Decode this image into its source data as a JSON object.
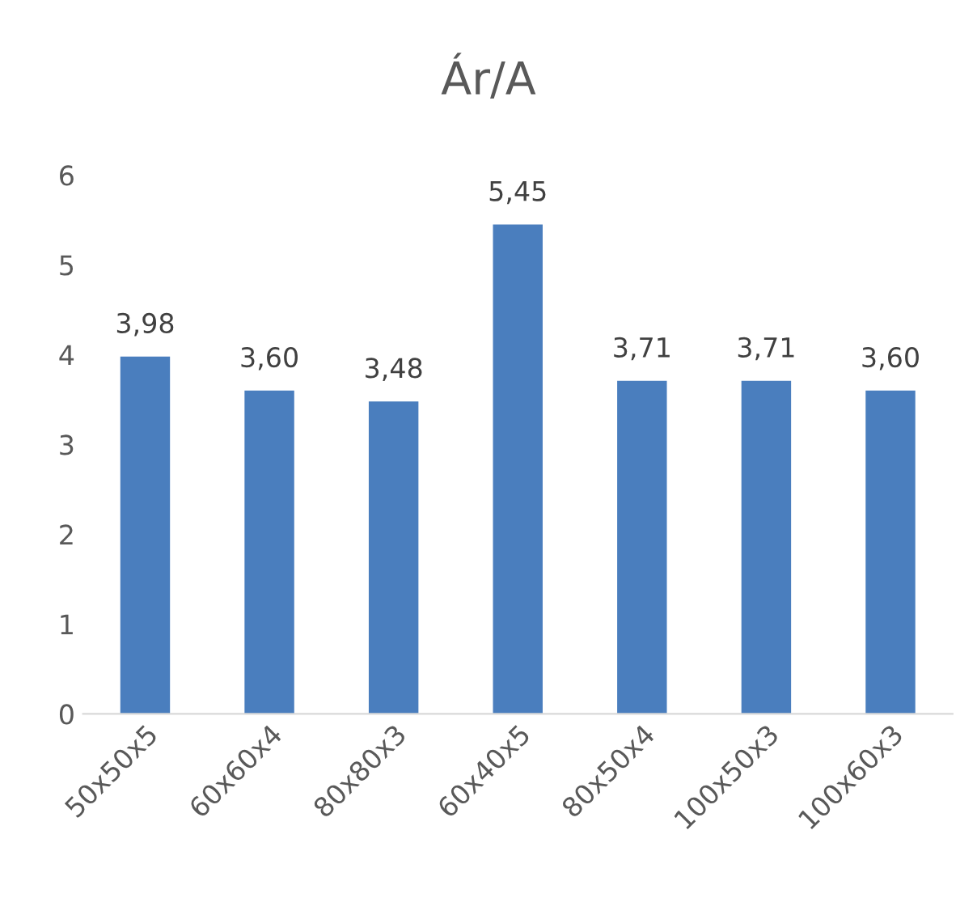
{
  "chart_data": {
    "type": "bar",
    "title": "Ár/A",
    "categories": [
      "50x50x5",
      "60x60x4",
      "80x80x3",
      "60x40x5",
      "80x50x4",
      "100x50x3",
      "100x60x3"
    ],
    "values": [
      3.98,
      3.6,
      3.48,
      5.45,
      3.71,
      3.71,
      3.6
    ],
    "value_labels": [
      "3,98",
      "3,60",
      "3,48",
      "5,45",
      "3,71",
      "3,71",
      "3,60"
    ],
    "color": "#4a7ebe",
    "ylim": [
      0,
      6
    ],
    "yticks": [
      0,
      1,
      2,
      3,
      4,
      5,
      6
    ],
    "grid": false
  }
}
